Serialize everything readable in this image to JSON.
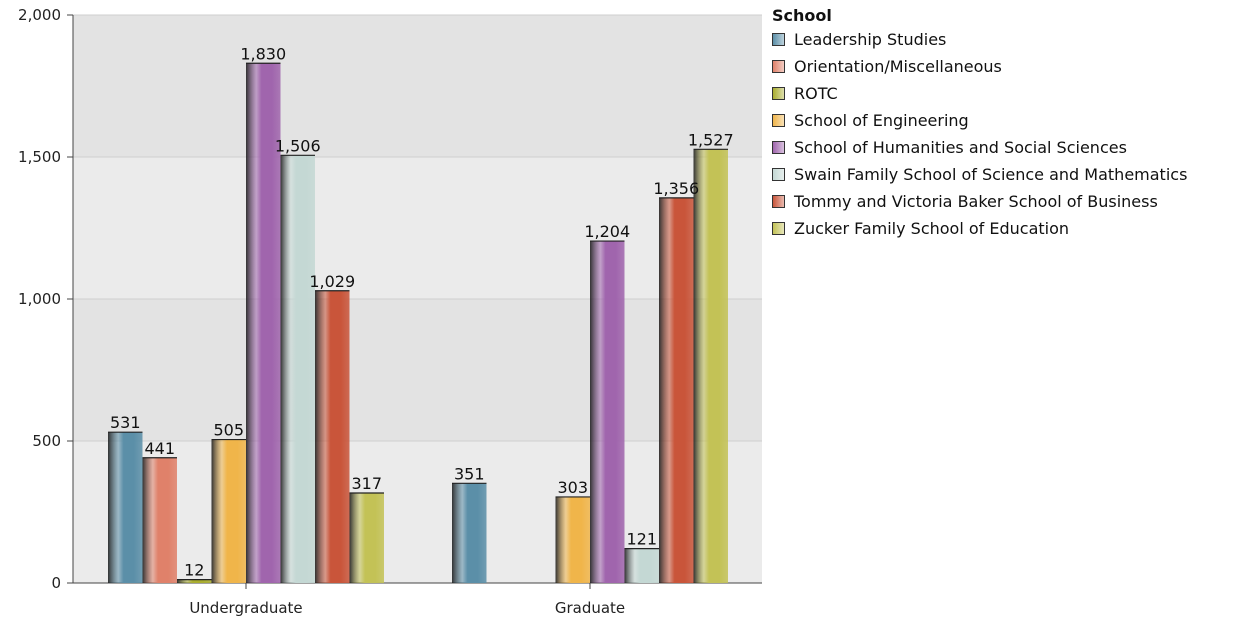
{
  "chart_data": {
    "type": "bar",
    "categories": [
      "Undergraduate",
      "Graduate"
    ],
    "ylim": [
      0,
      2000
    ],
    "yticks": [
      "0",
      "500",
      "1,000",
      "1,500",
      "2,000"
    ],
    "ytick_values": [
      0,
      500,
      1000,
      1500,
      2000
    ],
    "legend_title": "School",
    "legend_position": "top-right",
    "grid": true,
    "series": [
      {
        "name": "Leadership Studies",
        "color": "#5b8fa8",
        "values": [
          531,
          351
        ],
        "labels": [
          "531",
          "351"
        ]
      },
      {
        "name": "Orientation/Miscellaneous",
        "color": "#e0816a",
        "values": [
          441,
          null
        ],
        "labels": [
          "441",
          ""
        ]
      },
      {
        "name": "ROTC",
        "color": "#a9ad2f",
        "values": [
          12,
          null
        ],
        "labels": [
          "12",
          ""
        ]
      },
      {
        "name": "School of Engineering",
        "color": "#f0b54a",
        "values": [
          505,
          303
        ],
        "labels": [
          "505",
          "303"
        ]
      },
      {
        "name": "School of Humanities and Social Sciences",
        "color": "#a065ad",
        "values": [
          1830,
          1204
        ],
        "labels": [
          "1,830",
          "1,204"
        ]
      },
      {
        "name": "Swain Family School of Science and Mathematics",
        "color": "#c4d8d4",
        "values": [
          1506,
          121
        ],
        "labels": [
          "1,506",
          "121"
        ]
      },
      {
        "name": "Tommy and Victoria Baker School of Business",
        "color": "#c9553a",
        "values": [
          1029,
          1356
        ],
        "labels": [
          "1,029",
          "1,356"
        ]
      },
      {
        "name": "Zucker Family School of Education",
        "color": "#c3c256",
        "values": [
          317,
          1527
        ],
        "labels": [
          "317",
          "1,527"
        ]
      }
    ]
  }
}
